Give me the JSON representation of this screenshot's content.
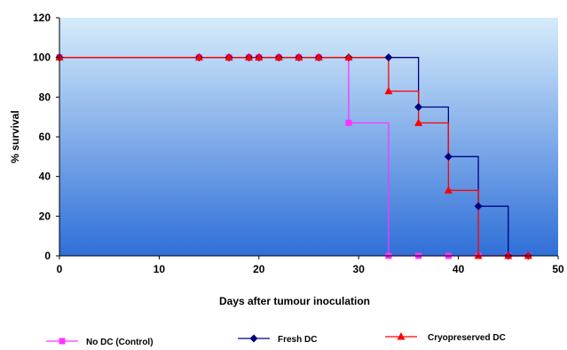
{
  "chart_data": {
    "type": "line",
    "step": true,
    "xlabel": "Days after tumour inoculation",
    "ylabel": "% survival",
    "xlim": [
      0,
      50
    ],
    "ylim": [
      0,
      120
    ],
    "xticks": [
      0,
      10,
      20,
      30,
      40,
      50
    ],
    "yticks": [
      0,
      20,
      40,
      60,
      80,
      100,
      120
    ],
    "grid": false,
    "legend_position": "bottom",
    "background_gradient": [
      "#d6ecfb",
      "#2f6fd8"
    ],
    "series": [
      {
        "name": "No DC (Control)",
        "color": "#ff33ff",
        "marker": "square",
        "x": [
          0,
          14,
          17,
          19,
          20,
          22,
          24,
          26,
          29,
          33,
          36,
          39,
          42,
          45,
          47
        ],
        "y": [
          100,
          100,
          100,
          100,
          100,
          100,
          100,
          100,
          67,
          0,
          0,
          0,
          0,
          0,
          0
        ]
      },
      {
        "name": "Fresh DC",
        "color": "#000080",
        "marker": "diamond",
        "x": [
          0,
          14,
          17,
          19,
          20,
          22,
          24,
          26,
          29,
          33,
          36,
          39,
          42,
          45,
          47
        ],
        "y": [
          100,
          100,
          100,
          100,
          100,
          100,
          100,
          100,
          100,
          100,
          75,
          50,
          25,
          0,
          0
        ]
      },
      {
        "name": "Cryopreserved DC",
        "color": "#ff0000",
        "marker": "triangle",
        "x": [
          0,
          14,
          17,
          19,
          20,
          22,
          24,
          26,
          29,
          33,
          36,
          39,
          42,
          45,
          47
        ],
        "y": [
          100,
          100,
          100,
          100,
          100,
          100,
          100,
          100,
          100,
          83,
          67,
          33,
          0,
          0,
          0
        ]
      }
    ]
  }
}
